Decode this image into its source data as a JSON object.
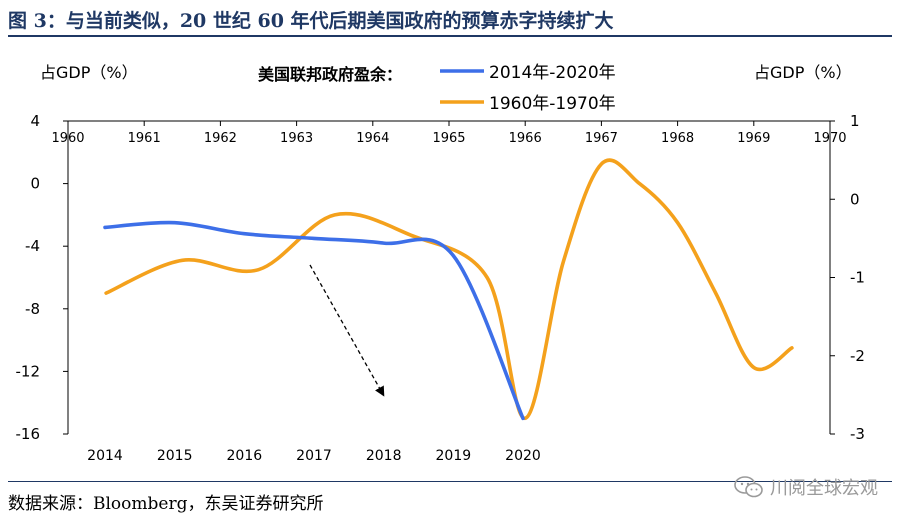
{
  "header": {
    "title": "图 3：与当前类似，20 世纪 60 年代后期美国政府的预算赤字持续扩大"
  },
  "footer": {
    "source": "数据来源：Bloomberg，东吴证券研究所",
    "watermark": "川阅全球宏观",
    "watermark_icon": "wechat-icon"
  },
  "chart_data": {
    "type": "line",
    "title": "美国联邦政府盈余：",
    "ylabel_left": "占GDP（%）",
    "ylabel_right": "占GDP（%）",
    "x_bottom": {
      "ticks": [
        "2014",
        "2015",
        "2016",
        "2017",
        "2018",
        "2019",
        "2020"
      ],
      "range": [
        2014,
        2020
      ]
    },
    "x_top": {
      "ticks": [
        "1960",
        "1961",
        "1962",
        "1963",
        "1964",
        "1965",
        "1966",
        "1967",
        "1968",
        "1969",
        "1970"
      ],
      "range": [
        1960,
        1970
      ]
    },
    "y_left": {
      "ticks": [
        4,
        0,
        -4,
        -8,
        -12,
        -16
      ],
      "range": [
        -16,
        4
      ]
    },
    "y_right": {
      "ticks": [
        1,
        0,
        -1,
        -2,
        -3
      ],
      "range": [
        -3,
        1
      ]
    },
    "legend_placement": "top-center",
    "series": [
      {
        "name": "2014年-2020年",
        "color": "#3d6fe8",
        "x_axis": "bottom",
        "y_axis": "left",
        "x": [
          2014,
          2015,
          2016,
          2017,
          2018,
          2019,
          2020
        ],
        "values": [
          -2.8,
          -2.5,
          -3.2,
          -3.5,
          -3.8,
          -4.6,
          -15.0
        ]
      },
      {
        "name": "1960年-1970年",
        "color": "#f4a11c",
        "x_axis": "top",
        "y_axis": "right",
        "x": [
          1960.5,
          1961.5,
          1962.5,
          1963.5,
          1964.5,
          1965.5,
          1966,
          1966.5,
          1967,
          1967.5,
          1968,
          1968.5,
          1969,
          1969.5
        ],
        "values": [
          -1.2,
          -0.78,
          -0.9,
          -0.2,
          -0.46,
          -1.0,
          -2.8,
          -0.8,
          0.45,
          0.2,
          -0.3,
          -1.2,
          -2.15,
          -1.9
        ]
      }
    ],
    "annotations": [
      {
        "type": "dashed-arrow",
        "from_x": 2017,
        "from_y": -5.2,
        "to_x": 2019,
        "to_y": -13.5
      }
    ]
  }
}
